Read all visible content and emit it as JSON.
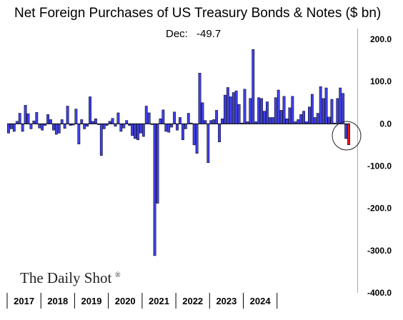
{
  "chart_data": {
    "type": "bar",
    "title": "Net Foreign Purchases of US Treasury Bonds & Notes ($ bn)",
    "annotation": {
      "label": "Dec:",
      "value": "-49.7"
    },
    "ylim": [
      -400,
      200
    ],
    "yticks": [
      200,
      100,
      0,
      -100,
      -200,
      -300,
      -400
    ],
    "ytick_labels": [
      "200.0",
      "100.0",
      "0.0",
      "-100.0",
      "-200.0",
      "-300.0",
      "-400.0"
    ],
    "years": [
      "2017",
      "2018",
      "2019",
      "2020",
      "2021",
      "2022",
      "2023",
      "2024"
    ],
    "series": [
      {
        "color": "#4040e8",
        "values": [
          -22,
          -12,
          -18,
          6,
          25,
          -18,
          44,
          24,
          -12,
          7,
          27,
          -10,
          -15,
          -4,
          22,
          10,
          -15,
          -25,
          -22,
          10,
          -11,
          42,
          -4,
          -3,
          35,
          -48,
          10,
          -12,
          -6,
          64,
          6,
          12,
          -2,
          -75,
          -12,
          -4,
          6,
          13,
          -6,
          26,
          -18,
          -10,
          8,
          -4,
          -28,
          -35,
          -38,
          -22,
          -30,
          42,
          26,
          -2,
          -312,
          -188,
          12,
          33,
          -18,
          -20,
          -8,
          28,
          -15,
          15,
          -38,
          -12,
          25,
          2,
          -50,
          -70,
          120,
          50,
          8,
          -92,
          8,
          10,
          32,
          -43,
          12,
          68,
          86,
          64,
          74,
          78,
          46,
          2,
          82,
          5,
          60,
          176,
          5,
          62,
          60,
          30,
          52,
          15,
          15,
          62,
          80,
          32,
          65,
          12,
          38,
          65,
          5,
          10,
          22,
          30,
          5,
          40,
          70,
          15,
          25,
          88,
          60,
          85,
          16,
          58,
          2,
          60,
          85,
          72,
          -35
        ]
      },
      {
        "color": "#e81616",
        "values": [
          -49.7
        ]
      }
    ]
  },
  "brand": {
    "name": "The Daily Shot",
    "mark": "®"
  }
}
